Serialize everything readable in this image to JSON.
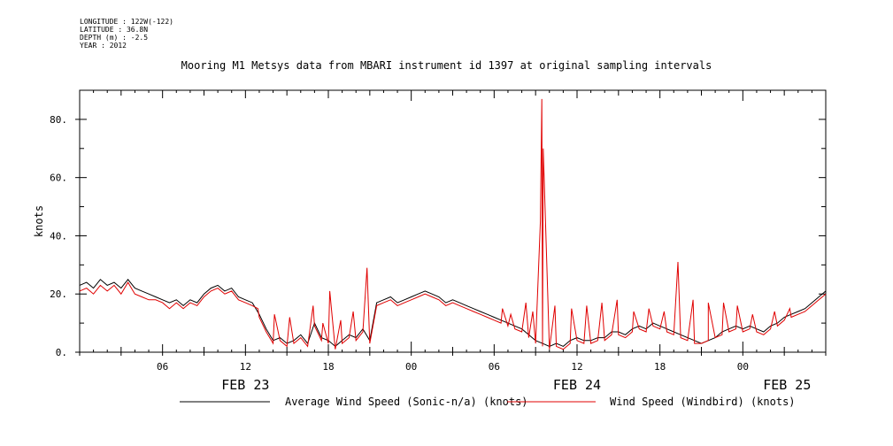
{
  "header": {
    "lines": [
      "LONGITUDE : 122W(-122)",
      "LATITUDE : 36.8N",
      "DEPTH (m) : -2.5",
      "YEAR : 2012"
    ],
    "title": "Mooring M1 Metsys data from MBARI instrument id 1397 at original sampling intervals"
  },
  "chart_data": {
    "type": "line",
    "title": "Mooring M1 Metsys data from MBARI instrument id 1397 at original sampling intervals",
    "ylabel": "knots",
    "xlabel": "",
    "ylim": [
      0,
      90
    ],
    "yticks": [
      0,
      20,
      40,
      60,
      80
    ],
    "ytick_labels": [
      "0.",
      "20.",
      "40.",
      "60.",
      "80."
    ],
    "xlim_hours": [
      0,
      54
    ],
    "xticks": [
      {
        "hour": 6,
        "label": "06"
      },
      {
        "hour": 12,
        "label": "12"
      },
      {
        "hour": 18,
        "label": "18"
      },
      {
        "hour": 24,
        "label": "00"
      },
      {
        "hour": 30,
        "label": "06"
      },
      {
        "hour": 36,
        "label": "12"
      },
      {
        "hour": 42,
        "label": "18"
      },
      {
        "hour": 48,
        "label": "00"
      }
    ],
    "date_labels": [
      {
        "hour": 12,
        "label": "FEB 23"
      },
      {
        "hour": 36,
        "label": "FEB 24"
      },
      {
        "hour": 51.2,
        "label": "FEB 25"
      }
    ],
    "grid": false,
    "legend": "bottom",
    "series": [
      {
        "name": "Average Wind Speed (Sonic-n/a) (knots)",
        "color": "#000000",
        "x": [
          0,
          0.5,
          1,
          1.5,
          2,
          2.5,
          3,
          3.5,
          4,
          4.5,
          5,
          5.5,
          6,
          6.5,
          7,
          7.5,
          8,
          8.5,
          9,
          9.5,
          10,
          10.5,
          11,
          11.5,
          12,
          12.5,
          13,
          13.5,
          14,
          14.5,
          15,
          15.5,
          16,
          16.5,
          17,
          17.5,
          18,
          18.5,
          19,
          19.5,
          20,
          20.5,
          21,
          21.5,
          22,
          22.5,
          23,
          23.5,
          24,
          24.5,
          25,
          25.5,
          26,
          26.5,
          27,
          27.5,
          28,
          28.5,
          29,
          29.5,
          30,
          30.5,
          31,
          31.5,
          32,
          32.5,
          33,
          33.5,
          34,
          34.5,
          35,
          35.5,
          36,
          36.5,
          37,
          37.5,
          38,
          38.5,
          39,
          39.5,
          40,
          40.5,
          41,
          41.5,
          42,
          42.5,
          43,
          43.5,
          44,
          44.5,
          45,
          45.5,
          46,
          46.5,
          47,
          47.5,
          48,
          48.5,
          49,
          49.5,
          50,
          50.5,
          51,
          51.5,
          52,
          52.5,
          53,
          53.5,
          54
        ],
        "y": [
          23,
          24,
          22,
          25,
          23,
          24,
          22,
          25,
          22,
          21,
          20,
          19,
          18,
          17,
          18,
          16,
          18,
          17,
          20,
          22,
          23,
          21,
          22,
          19,
          18,
          17,
          13,
          8,
          4,
          5,
          3,
          4,
          6,
          3,
          10,
          5,
          4,
          2,
          4,
          6,
          5,
          8,
          4,
          17,
          18,
          19,
          17,
          18,
          19,
          20,
          21,
          20,
          19,
          17,
          18,
          17,
          16,
          15,
          14,
          13,
          12,
          11,
          10,
          9,
          8,
          6,
          4,
          3,
          2,
          3,
          2,
          4,
          5,
          4,
          4,
          5,
          5,
          7,
          7,
          6,
          8,
          9,
          8,
          10,
          9,
          8,
          7,
          6,
          5,
          4,
          3,
          4,
          5,
          7,
          8,
          9,
          8,
          9,
          8,
          7,
          9,
          10,
          12,
          13,
          14,
          15,
          17,
          19,
          21
        ]
      },
      {
        "name": "Wind Speed (Windbird) (knots)",
        "color": "#e00000",
        "x": [
          0,
          0.5,
          1,
          1.5,
          2,
          2.5,
          3,
          3.5,
          4,
          4.5,
          5,
          5.5,
          6,
          6.5,
          7,
          7.5,
          8,
          8.5,
          9,
          9.5,
          10,
          10.5,
          11,
          11.5,
          12,
          12.5,
          13,
          13.5,
          14,
          14.5,
          15,
          15.5,
          16,
          16.5,
          17,
          17.5,
          18,
          18.5,
          19,
          19.5,
          20,
          20.5,
          21,
          21.5,
          22,
          22.5,
          23,
          23.5,
          24,
          24.5,
          25,
          25.5,
          26,
          26.5,
          27,
          27.5,
          28,
          28.5,
          29,
          29.5,
          30,
          30.5,
          31,
          31.5,
          32,
          32.5,
          33,
          33.5,
          34,
          34.5,
          35,
          35.5,
          36,
          36.5,
          37,
          37.5,
          38,
          38.5,
          39,
          39.5,
          40,
          40.5,
          41,
          41.5,
          42,
          42.5,
          43,
          43.5,
          44,
          44.5,
          45,
          45.5,
          46,
          46.5,
          47,
          47.5,
          48,
          48.5,
          49,
          49.5,
          50,
          50.5,
          51,
          51.5,
          52,
          52.5,
          53,
          53.5,
          54
        ],
        "y": [
          21,
          22,
          20,
          23,
          21,
          23,
          20,
          24,
          20,
          19,
          18,
          18,
          17,
          15,
          17,
          15,
          17,
          16,
          19,
          21,
          22,
          20,
          21,
          18,
          17,
          16,
          12,
          7,
          3,
          4,
          2,
          3,
          5,
          2,
          9,
          4,
          3,
          1,
          3,
          5,
          4,
          7,
          3,
          16,
          17,
          18,
          16,
          17,
          18,
          19,
          20,
          19,
          18,
          16,
          17,
          16,
          15,
          14,
          13,
          12,
          11,
          10,
          9,
          8,
          7,
          5,
          3,
          2,
          1,
          2,
          1,
          3,
          4,
          3,
          3,
          4,
          4,
          6,
          6,
          5,
          7,
          8,
          7,
          9,
          8,
          7,
          6,
          5,
          4,
          3,
          3,
          4,
          5,
          6,
          7,
          8,
          7,
          8,
          7,
          6,
          8,
          9,
          11,
          12,
          13,
          14,
          16,
          18,
          20
        ],
        "spikes": [
          {
            "x": 12.9,
            "y": 15
          },
          {
            "x": 14.1,
            "y": 13
          },
          {
            "x": 15.2,
            "y": 12
          },
          {
            "x": 16.9,
            "y": 16
          },
          {
            "x": 17.6,
            "y": 10
          },
          {
            "x": 18.1,
            "y": 21
          },
          {
            "x": 18.9,
            "y": 11
          },
          {
            "x": 19.8,
            "y": 14
          },
          {
            "x": 20.8,
            "y": 29
          },
          {
            "x": 30.6,
            "y": 15
          },
          {
            "x": 31.2,
            "y": 13
          },
          {
            "x": 32.3,
            "y": 17
          },
          {
            "x": 32.8,
            "y": 14
          },
          {
            "x": 33.35,
            "y": 45
          },
          {
            "x": 33.45,
            "y": 87
          },
          {
            "x": 33.55,
            "y": 70
          },
          {
            "x": 34.4,
            "y": 16
          },
          {
            "x": 35.6,
            "y": 15
          },
          {
            "x": 36.7,
            "y": 16
          },
          {
            "x": 37.8,
            "y": 17
          },
          {
            "x": 38.9,
            "y": 18
          },
          {
            "x": 40.1,
            "y": 14
          },
          {
            "x": 41.2,
            "y": 15
          },
          {
            "x": 42.3,
            "y": 14
          },
          {
            "x": 43.3,
            "y": 31
          },
          {
            "x": 44.4,
            "y": 18
          },
          {
            "x": 45.5,
            "y": 17
          },
          {
            "x": 46.6,
            "y": 17
          },
          {
            "x": 47.6,
            "y": 16
          },
          {
            "x": 48.7,
            "y": 13
          },
          {
            "x": 50.3,
            "y": 14
          },
          {
            "x": 51.4,
            "y": 15
          }
        ]
      }
    ]
  }
}
